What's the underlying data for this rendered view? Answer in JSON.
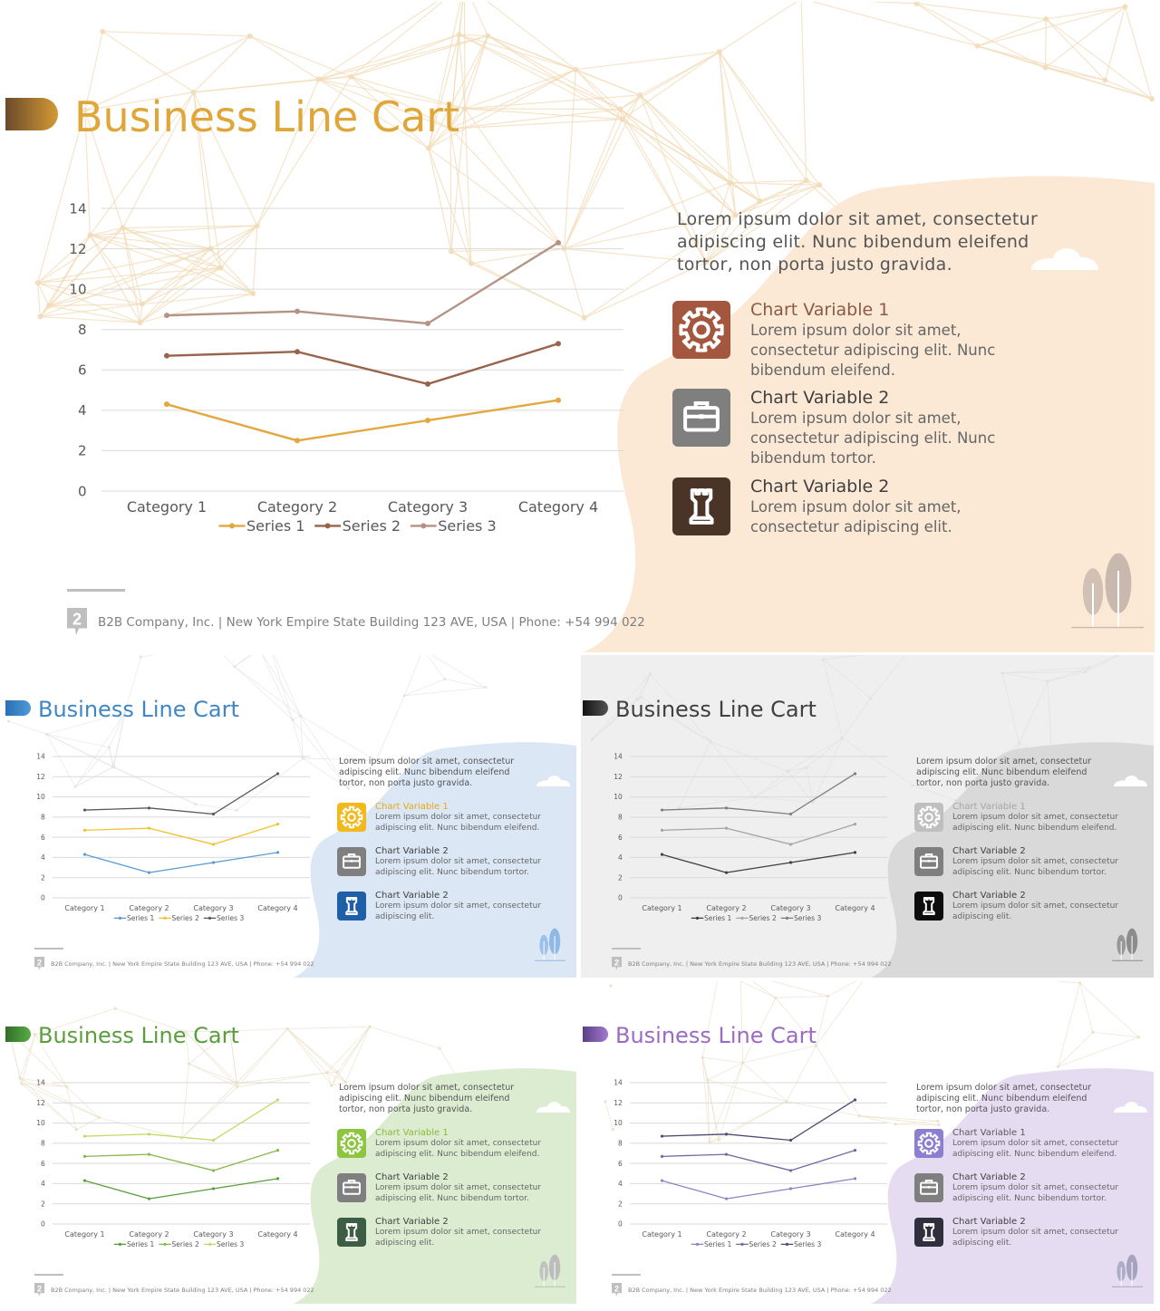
{
  "slides": [
    {
      "id": "main",
      "title": "Business Line Cart",
      "theme": {
        "title_color": "#e0a63a",
        "tab_gradient": [
          "#6b4a2b",
          "#d59a35"
        ],
        "blob_color": "#fbe9d6",
        "net_color": "#f2dcb8",
        "series_colors": [
          "#e3a73d",
          "#98634a",
          "#b59384"
        ],
        "icon_colors": [
          "#a4573f",
          "#7f7f7f",
          "#4a3427"
        ],
        "item_title_colors": [
          "#8b5a45",
          "#404040",
          "#404040"
        ],
        "tree_color": "#c9b8ae"
      },
      "description": "Lorem ipsum dolor sit amet, consectetur adipiscing elit. Nunc bibendum eleifend tortor, non porta justo gravida.",
      "items": [
        {
          "icon": "gear-icon",
          "title": "Chart Variable 1",
          "body": "Lorem ipsum dolor sit amet, consectetur adipiscing elit. Nunc bibendum eleifend."
        },
        {
          "icon": "briefcase-icon",
          "title": "Chart Variable 2",
          "body": "Lorem ipsum dolor sit amet, consectetur adipiscing elit. Nunc bibendum tortor."
        },
        {
          "icon": "chess-rook-icon",
          "title": "Chart Variable 2",
          "body": "Lorem ipsum dolor sit amet, consectetur adipiscing elit."
        }
      ],
      "footer": "B2B Company, Inc.  |  New York Empire State Building 123 AVE, USA  |  Phone: +54 994 022"
    },
    {
      "id": "blue",
      "title": "Business Line Cart",
      "theme": {
        "title_color": "#3f86c6",
        "tab_gradient": [
          "#2a6fb5",
          "#4e9ad8"
        ],
        "blob_color": "#dbe7f5",
        "net_color": "#e3e3e3",
        "series_colors": [
          "#5b9bd5",
          "#f2c12e",
          "#595959"
        ],
        "icon_colors": [
          "#f2b91c",
          "#7f7f7f",
          "#1f5fa8"
        ],
        "item_title_colors": [
          "#e8a914",
          "#404040",
          "#404040"
        ],
        "tree_color": "#8fb8e6"
      },
      "description": "Lorem ipsum dolor sit amet, consectetur adipiscing elit. Nunc bibendum eleifend tortor, non porta justo gravida.",
      "items": [
        {
          "icon": "gear-icon",
          "title": "Chart Variable 1",
          "body": "Lorem ipsum dolor sit amet, consectetur adipiscing elit. Nunc bibendum eleifend."
        },
        {
          "icon": "briefcase-icon",
          "title": "Chart Variable 2",
          "body": "Lorem ipsum dolor sit amet, consectetur adipiscing elit. Nunc bibendum tortor."
        },
        {
          "icon": "chess-rook-icon",
          "title": "Chart Variable 2",
          "body": "Lorem ipsum dolor sit amet, consectetur adipiscing elit."
        }
      ],
      "footer": "B2B Company, Inc.  |  New York Empire State Building 123 AVE, USA  |  Phone: +54 994 022"
    },
    {
      "id": "gray",
      "title": "Business Line Cart",
      "theme": {
        "title_color": "#404040",
        "tab_gradient": [
          "#111111",
          "#555555"
        ],
        "blob_color": "#d9d9d9",
        "page_color": "#efefef",
        "net_color": "#e0e0e0",
        "series_colors": [
          "#404040",
          "#a6a6a6",
          "#7f7f7f"
        ],
        "icon_colors": [
          "#bfbfbf",
          "#7f7f7f",
          "#0d0d0d"
        ],
        "item_title_colors": [
          "#a6a6a6",
          "#404040",
          "#404040"
        ],
        "tree_color": "#8c8c8c"
      },
      "description": "Lorem ipsum dolor sit amet, consectetur adipiscing elit. Nunc bibendum eleifend tortor, non porta justo gravida.",
      "items": [
        {
          "icon": "gear-icon",
          "title": "Chart Variable 1",
          "body": "Lorem ipsum dolor sit amet, consectetur adipiscing elit. Nunc bibendum eleifend."
        },
        {
          "icon": "briefcase-icon",
          "title": "Chart Variable 2",
          "body": "Lorem ipsum dolor sit amet, consectetur adipiscing elit. Nunc bibendum tortor."
        },
        {
          "icon": "chess-rook-icon",
          "title": "Chart Variable 2",
          "body": "Lorem ipsum dolor sit amet, consectetur adipiscing elit."
        }
      ],
      "footer": "B2B Company, Inc.  |  New York Empire State Building 123 AVE, USA  |  Phone: +54 994 022"
    },
    {
      "id": "green",
      "title": "Business Line Cart",
      "theme": {
        "title_color": "#5a9e3c",
        "tab_gradient": [
          "#2f6e2a",
          "#5aab45"
        ],
        "blob_color": "#dbecd1",
        "net_color": "#eadfc9",
        "series_colors": [
          "#5a9e3c",
          "#86b84a",
          "#c5d86a"
        ],
        "icon_colors": [
          "#8cc63f",
          "#7f7f7f",
          "#3d5e44"
        ],
        "item_title_colors": [
          "#8cb83a",
          "#404040",
          "#404040"
        ],
        "tree_color": "#bcbcbc"
      },
      "description": "Lorem ipsum dolor sit amet, consectetur adipiscing elit. Nunc bibendum eleifend tortor, non porta justo gravida.",
      "items": [
        {
          "icon": "gear-icon",
          "title": "Chart Variable 1",
          "body": "Lorem ipsum dolor sit amet, consectetur adipiscing elit. Nunc bibendum eleifend."
        },
        {
          "icon": "briefcase-icon",
          "title": "Chart Variable 2",
          "body": "Lorem ipsum dolor sit amet, consectetur adipiscing elit. Nunc bibendum tortor."
        },
        {
          "icon": "chess-rook-icon",
          "title": "Chart Variable 2",
          "body": "Lorem ipsum dolor sit amet, consectetur adipiscing elit."
        }
      ],
      "footer": "B2B Company, Inc.  |  New York Empire State Building 123 AVE, USA  |  Phone: +54 994 022"
    },
    {
      "id": "purple",
      "title": "Business Line Cart",
      "theme": {
        "title_color": "#9b6bc4",
        "tab_gradient": [
          "#5b3f86",
          "#a27ad0"
        ],
        "blob_color": "#e5dcf1",
        "net_color": "#eadfc9",
        "series_colors": [
          "#8e86c4",
          "#6f6aa2",
          "#4e4a72"
        ],
        "icon_colors": [
          "#8c7fd1",
          "#7f7f7f",
          "#2f2f3e"
        ],
        "item_title_colors": [
          "#595959",
          "#404040",
          "#404040"
        ],
        "tree_color": "#a6a3c2"
      },
      "description": "Lorem ipsum dolor sit amet, consectetur adipiscing elit. Nunc bibendum eleifend tortor, non porta justo gravida.",
      "items": [
        {
          "icon": "gear-icon",
          "title": "Chart Variable 1",
          "body": "Lorem ipsum dolor sit amet, consectetur adipiscing elit. Nunc bibendum eleifend."
        },
        {
          "icon": "briefcase-icon",
          "title": "Chart Variable 2",
          "body": "Lorem ipsum dolor sit amet, consectetur adipiscing elit. Nunc bibendum tortor."
        },
        {
          "icon": "chess-rook-icon",
          "title": "Chart Variable 2",
          "body": "Lorem ipsum dolor sit amet, consectetur adipiscing elit."
        }
      ],
      "footer": "B2B Company, Inc.  |  New York Empire State Building 123 AVE, USA  |  Phone: +54 994 022"
    }
  ],
  "chart_data": {
    "type": "line",
    "categories": [
      "Category 1",
      "Category 2",
      "Category 3",
      "Category 4"
    ],
    "series": [
      {
        "name": "Series 1",
        "values": [
          4.3,
          2.5,
          3.5,
          4.5
        ]
      },
      {
        "name": "Series 2",
        "values": [
          6.7,
          6.9,
          5.3,
          7.3
        ]
      },
      {
        "name": "Series 3",
        "values": [
          8.7,
          8.9,
          8.3,
          12.3
        ]
      }
    ],
    "yticks": [
      0,
      2,
      4,
      6,
      8,
      10,
      12,
      14
    ],
    "ylim": [
      0,
      14
    ],
    "grid": true,
    "legend_position": "bottom"
  }
}
